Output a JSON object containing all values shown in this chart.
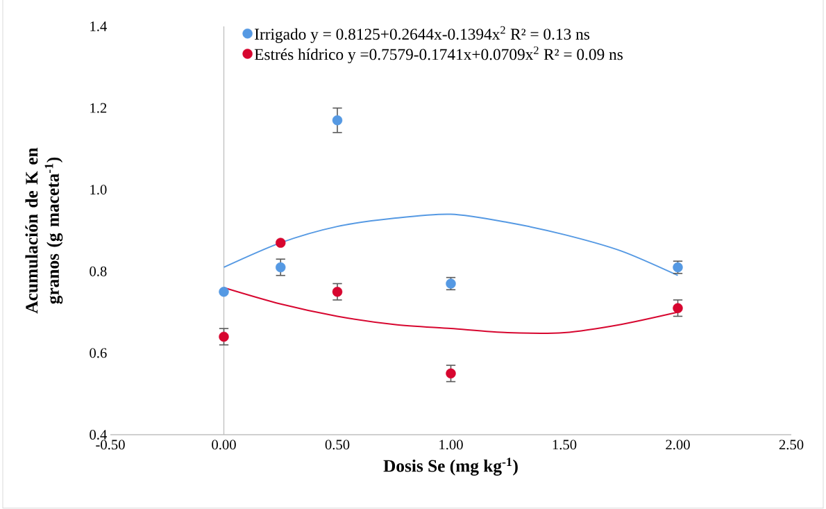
{
  "chart_data": {
    "type": "scatter",
    "xlabel": "Dosis Se (mg kg$^{-1}$)",
    "ylabel": "Acumulación de K en granos (g maceta$^{-1}$)",
    "xlim": [
      -0.5,
      2.5
    ],
    "ylim": [
      0.4,
      1.4
    ],
    "xticks": [
      {
        "value": -0.5,
        "label": "-0.50"
      },
      {
        "value": 0,
        "label": "0.00"
      },
      {
        "value": 0.5,
        "label": "0.50"
      },
      {
        "value": 1,
        "label": "1.00"
      },
      {
        "value": 1.5,
        "label": "1.50"
      },
      {
        "value": 2,
        "label": "2.00"
      },
      {
        "value": 2.5,
        "label": "2.50"
      }
    ],
    "yticks": [
      0.4,
      0.6,
      0.8,
      {
        "value": 1.0,
        "label": "1.0"
      },
      1.2,
      1.4
    ],
    "legend": "top",
    "ref_lines": [
      {
        "axis": "x",
        "value": 0,
        "color": "#bfbfbf"
      }
    ],
    "series": [
      {
        "name": "Irrigado y = 0.8125+0.2644x-0.1394x$^{2}$ R² = 0.13 ns",
        "color": "#5599e3",
        "marker": "circle",
        "x": [
          0,
          0.25,
          0.5,
          1,
          2
        ],
        "values": [
          0.75,
          0.81,
          1.17,
          0.77,
          0.81
        ],
        "errors": [
          null,
          0.02,
          0.03,
          0.015,
          0.015
        ]
      },
      {
        "name": "Estrés hídrico y =0.7579-0.1741x+0.0709x$^{2}$ R² = 0.09 ns",
        "color": "#d7062f",
        "marker": "circle",
        "x": [
          0,
          0.25,
          0.5,
          1,
          2
        ],
        "values": [
          0.64,
          0.87,
          0.75,
          0.55,
          0.71
        ],
        "errors": [
          0.02,
          null,
          0.02,
          0.02,
          0.02
        ]
      },
      {
        "type": "line",
        "color": "#5599e3",
        "marker": "none",
        "line_style": "solid",
        "x": [
          0,
          0.25,
          0.5,
          0.75,
          1,
          1.25,
          1.5,
          1.75,
          2
        ],
        "values": [
          0.81,
          0.87,
          0.91,
          0.93,
          0.94,
          0.92,
          0.89,
          0.85,
          0.79
        ]
      },
      {
        "type": "line",
        "color": "#d7062f",
        "marker": "none",
        "line_style": "solid",
        "x": [
          0,
          0.25,
          0.5,
          0.75,
          1,
          1.25,
          1.5,
          1.75,
          2
        ],
        "values": [
          0.76,
          0.72,
          0.69,
          0.67,
          0.66,
          0.65,
          0.65,
          0.67,
          0.7
        ]
      }
    ]
  }
}
